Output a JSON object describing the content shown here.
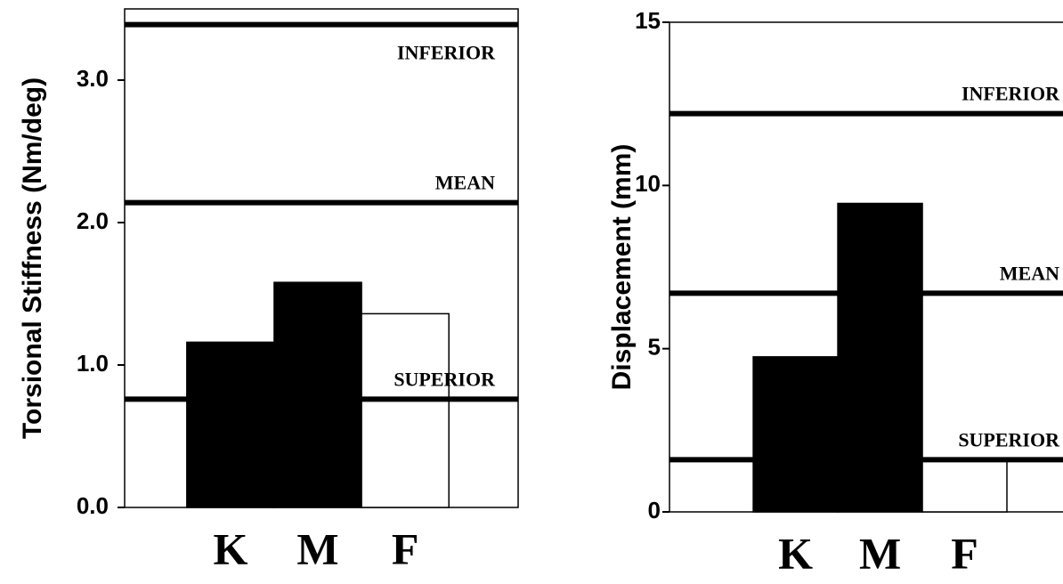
{
  "chart_data": [
    {
      "type": "bar",
      "ylabel": "Torsional Stiffness (Nm/deg)",
      "categories": [
        "K",
        "M",
        "F"
      ],
      "values": [
        1.16,
        1.58,
        1.36
      ],
      "colors": [
        "#000000",
        "#000000",
        "#ffffff"
      ],
      "ylim": [
        0,
        3.5
      ],
      "yticks": [
        {
          "value": 0,
          "label": "0.0"
        },
        {
          "value": 1,
          "label": "1.0"
        },
        {
          "value": 2,
          "label": "2.0"
        },
        {
          "value": 3,
          "label": "3.0"
        }
      ],
      "reference_lines": [
        {
          "label": "INFERIOR",
          "value": 3.39
        },
        {
          "label": "MEAN",
          "value": 2.14
        },
        {
          "label": "SUPERIOR",
          "value": 0.76
        }
      ]
    },
    {
      "type": "bar",
      "ylabel": "Displacement (mm)",
      "categories": [
        "K",
        "M",
        "F"
      ],
      "values": [
        4.75,
        9.45,
        1.6
      ],
      "colors": [
        "#000000",
        "#000000",
        "#ffffff"
      ],
      "ylim": [
        0,
        15
      ],
      "yticks": [
        0,
        5,
        10,
        15
      ],
      "reference_lines": [
        {
          "label": "INFERIOR",
          "value": 12.2
        },
        {
          "label": "MEAN",
          "value": 6.7
        },
        {
          "label": "SUPERIOR",
          "value": 1.6
        }
      ]
    }
  ]
}
